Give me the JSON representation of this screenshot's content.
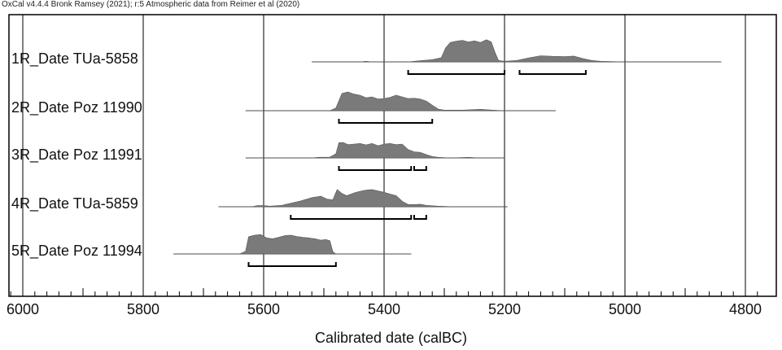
{
  "header": "OxCal v4.4.4 Bronk Ramsey (2021); r:5 Atmospheric data from Reimer et al (2020)",
  "chart_data": {
    "type": "area",
    "title": "",
    "xlabel": "Calibrated date (calBC)",
    "ylabel": "",
    "xlim": [
      6000,
      4780
    ],
    "x_reversed": true,
    "x_ticks": [
      6000,
      5800,
      5600,
      5400,
      5200,
      5000,
      4800
    ],
    "x_tick_labels": [
      "6000",
      "5800",
      "5600",
      "5400",
      "5200",
      "5000",
      "4800"
    ],
    "grid": "vertical lines at labeled ticks",
    "fill_color": "#7a7a7a",
    "series": [
      {
        "name": "1R_Date TUa-5858",
        "range": [
          5520,
          4840
        ],
        "density": [
          [
            5520,
            0
          ],
          [
            5440,
            0
          ],
          [
            5430,
            0.02
          ],
          [
            5420,
            0
          ],
          [
            5360,
            0
          ],
          [
            5340,
            0.04
          ],
          [
            5320,
            0.08
          ],
          [
            5305,
            0.15
          ],
          [
            5298,
            0.5
          ],
          [
            5290,
            0.7
          ],
          [
            5280,
            0.75
          ],
          [
            5270,
            0.78
          ],
          [
            5260,
            0.72
          ],
          [
            5250,
            0.76
          ],
          [
            5240,
            0.7
          ],
          [
            5230,
            0.8
          ],
          [
            5222,
            0.72
          ],
          [
            5215,
            0.3
          ],
          [
            5210,
            0.05
          ],
          [
            5200,
            0.02
          ],
          [
            5180,
            0.05
          ],
          [
            5160,
            0.14
          ],
          [
            5140,
            0.22
          ],
          [
            5120,
            0.2
          ],
          [
            5100,
            0.19
          ],
          [
            5085,
            0.21
          ],
          [
            5070,
            0.12
          ],
          [
            5055,
            0.05
          ],
          [
            5040,
            0.02
          ],
          [
            5000,
            0
          ],
          [
            4840,
            0
          ]
        ],
        "hpd_95": [
          [
            5360,
            5200
          ],
          [
            5175,
            5065
          ]
        ]
      },
      {
        "name": "2R_Date Poz 11990",
        "range": [
          5630,
          5115
        ],
        "density": [
          [
            5630,
            0
          ],
          [
            5490,
            0
          ],
          [
            5480,
            0.1
          ],
          [
            5470,
            0.62
          ],
          [
            5460,
            0.68
          ],
          [
            5450,
            0.6
          ],
          [
            5440,
            0.56
          ],
          [
            5430,
            0.47
          ],
          [
            5420,
            0.5
          ],
          [
            5410,
            0.42
          ],
          [
            5400,
            0.44
          ],
          [
            5390,
            0.48
          ],
          [
            5380,
            0.56
          ],
          [
            5370,
            0.5
          ],
          [
            5360,
            0.44
          ],
          [
            5350,
            0.45
          ],
          [
            5340,
            0.42
          ],
          [
            5330,
            0.35
          ],
          [
            5320,
            0.2
          ],
          [
            5310,
            0.06
          ],
          [
            5300,
            0.02
          ],
          [
            5270,
            0.02
          ],
          [
            5240,
            0.05
          ],
          [
            5220,
            0.02
          ],
          [
            5200,
            0
          ],
          [
            5115,
            0
          ]
        ],
        "hpd_95": [
          [
            5475,
            5320
          ]
        ]
      },
      {
        "name": "3R_Date Poz 11991",
        "range": [
          5630,
          5200
        ],
        "density": [
          [
            5630,
            0
          ],
          [
            5520,
            0
          ],
          [
            5510,
            0.02
          ],
          [
            5490,
            0.03
          ],
          [
            5480,
            0.15
          ],
          [
            5475,
            0.55
          ],
          [
            5468,
            0.56
          ],
          [
            5460,
            0.48
          ],
          [
            5450,
            0.5
          ],
          [
            5440,
            0.52
          ],
          [
            5430,
            0.47
          ],
          [
            5420,
            0.52
          ],
          [
            5410,
            0.44
          ],
          [
            5400,
            0.5
          ],
          [
            5390,
            0.52
          ],
          [
            5380,
            0.48
          ],
          [
            5370,
            0.5
          ],
          [
            5360,
            0.3
          ],
          [
            5350,
            0.22
          ],
          [
            5340,
            0.2
          ],
          [
            5330,
            0.12
          ],
          [
            5320,
            0.05
          ],
          [
            5310,
            0.02
          ],
          [
            5290,
            0
          ],
          [
            5260,
            0.02
          ],
          [
            5240,
            0
          ],
          [
            5200,
            0
          ]
        ],
        "hpd_95": [
          [
            5475,
            5355
          ],
          [
            5350,
            5330
          ]
        ]
      },
      {
        "name": "4R_Date TUa-5859",
        "range": [
          5675,
          5195
        ],
        "density": [
          [
            5675,
            0
          ],
          [
            5620,
            0
          ],
          [
            5610,
            0.04
          ],
          [
            5600,
            0.04
          ],
          [
            5590,
            0.02
          ],
          [
            5570,
            0.05
          ],
          [
            5560,
            0.1
          ],
          [
            5540,
            0.2
          ],
          [
            5520,
            0.33
          ],
          [
            5505,
            0.38
          ],
          [
            5495,
            0.28
          ],
          [
            5485,
            0.25
          ],
          [
            5478,
            0.62
          ],
          [
            5470,
            0.48
          ],
          [
            5462,
            0.4
          ],
          [
            5450,
            0.5
          ],
          [
            5440,
            0.56
          ],
          [
            5430,
            0.6
          ],
          [
            5420,
            0.62
          ],
          [
            5410,
            0.57
          ],
          [
            5400,
            0.52
          ],
          [
            5390,
            0.46
          ],
          [
            5380,
            0.4
          ],
          [
            5370,
            0.2
          ],
          [
            5360,
            0.08
          ],
          [
            5350,
            0.08
          ],
          [
            5340,
            0.09
          ],
          [
            5330,
            0.05
          ],
          [
            5310,
            0.02
          ],
          [
            5280,
            0
          ],
          [
            5195,
            0
          ]
        ],
        "hpd_95": [
          [
            5555,
            5355
          ],
          [
            5350,
            5330
          ]
        ]
      },
      {
        "name": "5R_Date Poz 11994",
        "range": [
          5750,
          5355
        ],
        "density": [
          [
            5750,
            0
          ],
          [
            5640,
            0
          ],
          [
            5630,
            0.1
          ],
          [
            5625,
            0.62
          ],
          [
            5615,
            0.68
          ],
          [
            5605,
            0.7
          ],
          [
            5595,
            0.58
          ],
          [
            5585,
            0.55
          ],
          [
            5575,
            0.6
          ],
          [
            5565,
            0.66
          ],
          [
            5555,
            0.68
          ],
          [
            5545,
            0.63
          ],
          [
            5535,
            0.6
          ],
          [
            5525,
            0.58
          ],
          [
            5515,
            0.55
          ],
          [
            5505,
            0.5
          ],
          [
            5497,
            0.52
          ],
          [
            5490,
            0.48
          ],
          [
            5485,
            0.08
          ],
          [
            5480,
            0
          ],
          [
            5355,
            0
          ]
        ],
        "hpd_95": [
          [
            5625,
            5480
          ]
        ]
      }
    ]
  }
}
